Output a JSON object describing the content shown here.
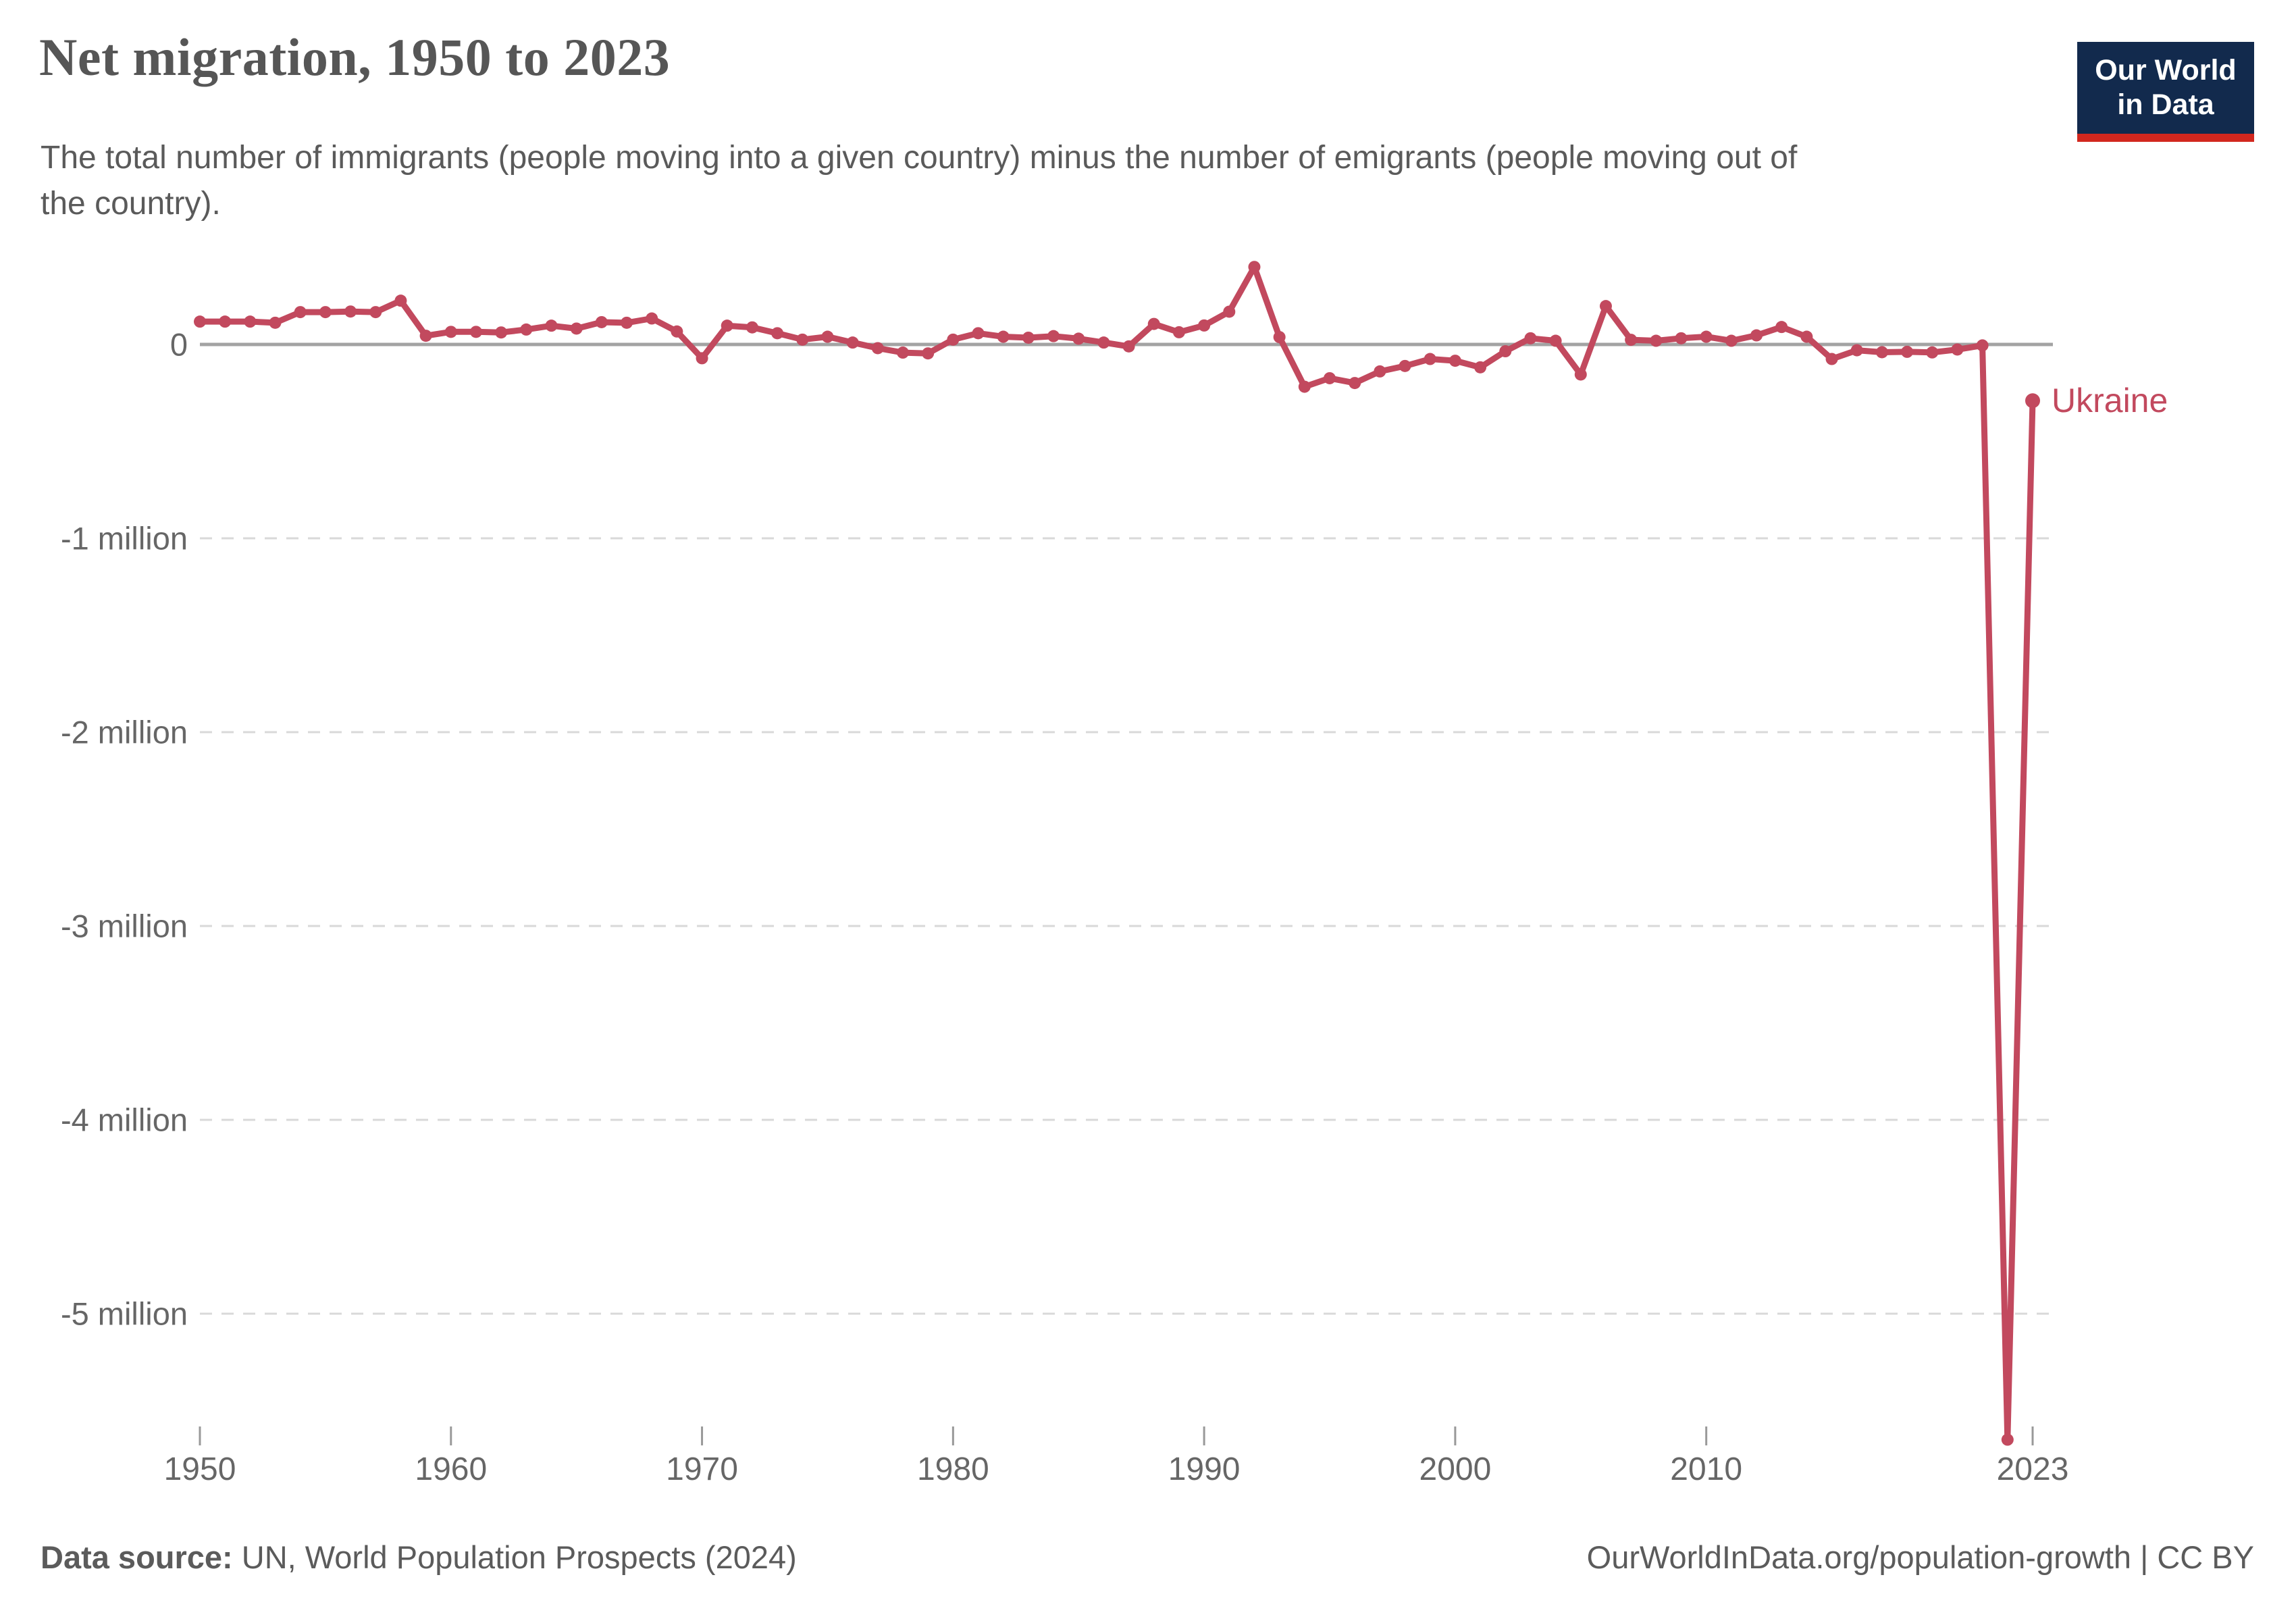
{
  "header": {
    "title": "Net migration, 1950 to 2023",
    "subtitle": "The total number of immigrants (people moving into a given country) minus the number of emigrants (people moving out of the country)."
  },
  "logo": {
    "line1": "Our World",
    "line2": "in Data",
    "bg_color": "#122a4d",
    "accent_color": "#d2271e"
  },
  "chart_data": {
    "type": "line",
    "title": "Net migration, 1950 to 2023",
    "unit": "people (net migration per year)",
    "entity": "Ukraine",
    "x": [
      1950,
      1951,
      1952,
      1953,
      1954,
      1955,
      1956,
      1957,
      1958,
      1959,
      1960,
      1961,
      1962,
      1963,
      1964,
      1965,
      1966,
      1967,
      1968,
      1969,
      1970,
      1971,
      1972,
      1973,
      1974,
      1975,
      1976,
      1977,
      1978,
      1979,
      1980,
      1981,
      1982,
      1983,
      1984,
      1985,
      1986,
      1987,
      1988,
      1989,
      1990,
      1991,
      1992,
      1993,
      1994,
      1995,
      1996,
      1997,
      1998,
      1999,
      2000,
      2001,
      2002,
      2003,
      2004,
      2005,
      2006,
      2007,
      2008,
      2009,
      2010,
      2011,
      2012,
      2013,
      2014,
      2015,
      2016,
      2017,
      2018,
      2019,
      2020,
      2021,
      2022,
      2023
    ],
    "series": [
      {
        "name": "Ukraine",
        "values_thousands": [
          118,
          118,
          118,
          112,
          167,
          167,
          170,
          167,
          226,
          45,
          65,
          65,
          62,
          77,
          97,
          82,
          115,
          112,
          134,
          67,
          -71,
          97,
          88,
          58,
          25,
          40,
          10,
          -19,
          -42,
          -46,
          25,
          58,
          40,
          35,
          43,
          30,
          10,
          -10,
          106,
          63,
          98,
          169,
          400,
          38,
          -218,
          -174,
          -199,
          -139,
          -111,
          -75,
          -84,
          -118,
          -35,
          32,
          19,
          -155,
          198,
          24,
          19,
          32,
          40,
          19,
          47,
          90,
          40,
          -75,
          -30,
          -40,
          -38,
          -41,
          -26,
          -5,
          -5650,
          -290
        ]
      }
    ],
    "y_ticks": [
      {
        "label": "0",
        "value_thousands": 0
      },
      {
        "label": "-1 million",
        "value_thousands": -1000
      },
      {
        "label": "-2 million",
        "value_thousands": -2000
      },
      {
        "label": "-3 million",
        "value_thousands": -3000
      },
      {
        "label": "-4 million",
        "value_thousands": -4000
      },
      {
        "label": "-5 million",
        "value_thousands": -5000
      }
    ],
    "x_ticks": [
      {
        "label": "1950",
        "year": 1950
      },
      {
        "label": "1960",
        "year": 1960
      },
      {
        "label": "1970",
        "year": 1970
      },
      {
        "label": "1980",
        "year": 1980
      },
      {
        "label": "1990",
        "year": 1990
      },
      {
        "label": "2000",
        "year": 2000
      },
      {
        "label": "2010",
        "year": 2010
      },
      {
        "label": "2023",
        "year": 2023
      }
    ],
    "ylim_thousands": [
      -5800,
      450
    ],
    "xlabel": "",
    "ylabel": "",
    "grid": "horizontal dashed gridlines at each million below zero; solid gray zero line",
    "legend_position": "end-of-line entity label at right",
    "line_color": "#c2495e"
  },
  "colors": {
    "zero_line": "#a3a3a3",
    "gridline": "#d9d9d9",
    "tick_mark": "#999999",
    "axis_text": "#666666"
  },
  "footer": {
    "source_label": "Data source:",
    "source_text": " UN, World Population Prospects (2024)",
    "right_text": "OurWorldInData.org/population-growth | CC BY"
  }
}
